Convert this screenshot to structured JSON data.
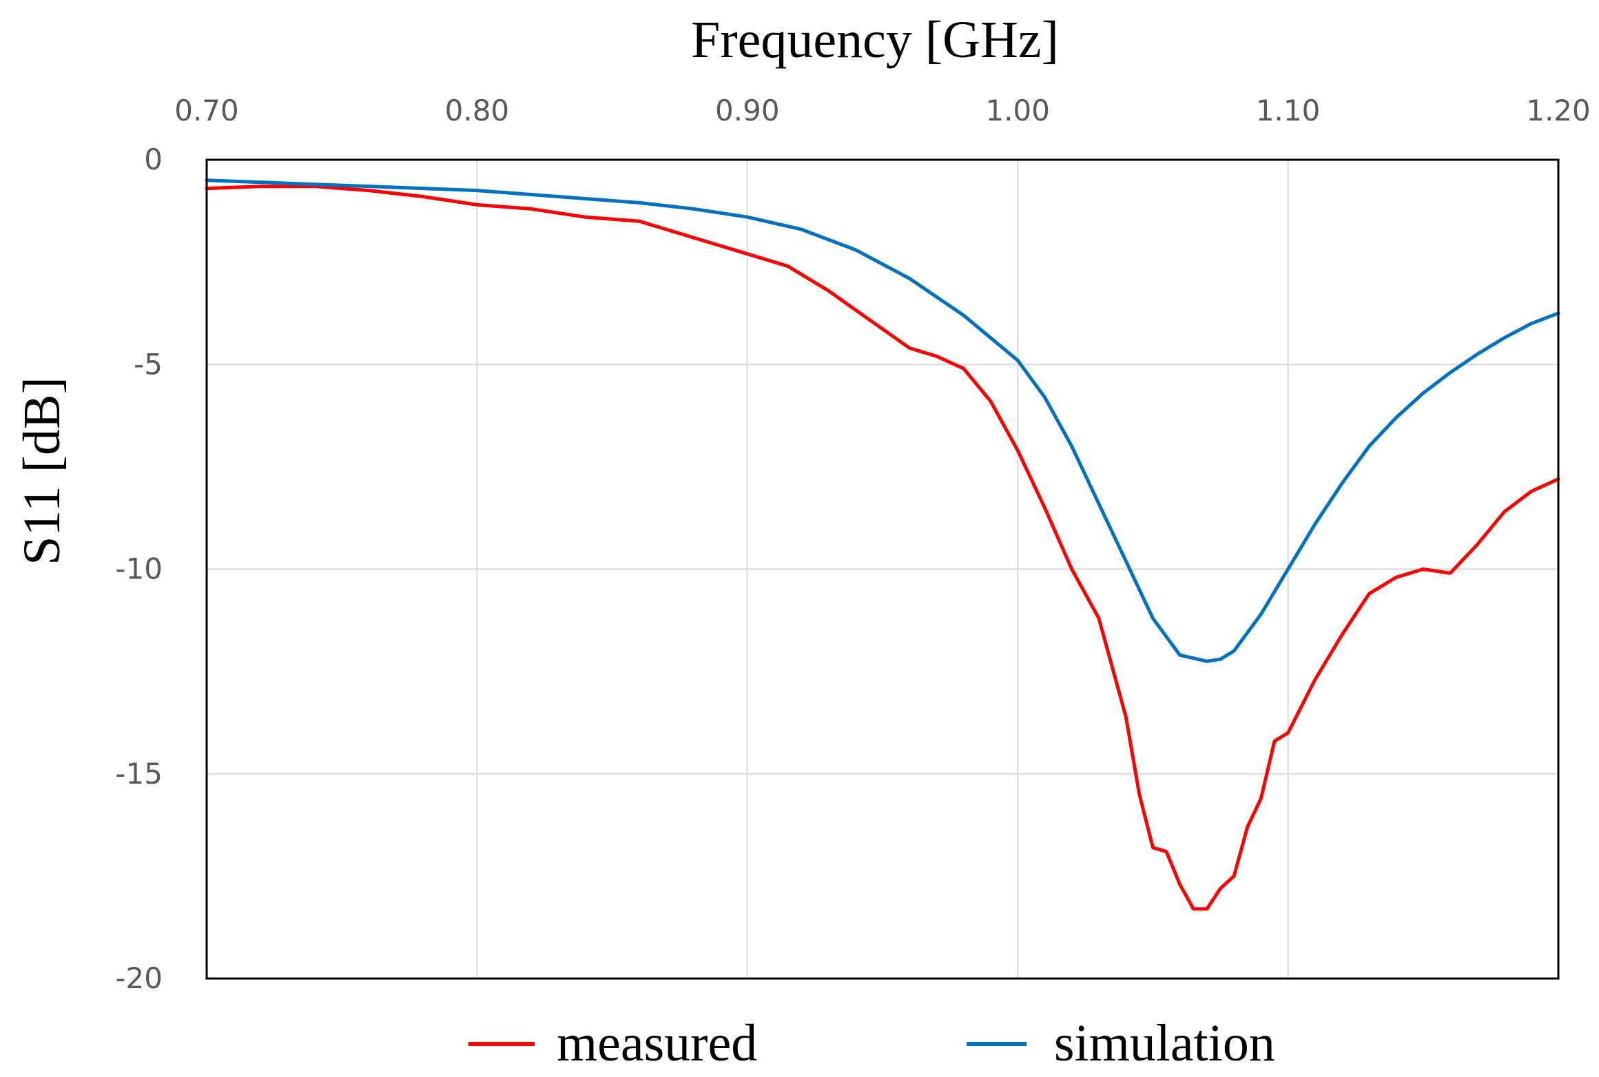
{
  "chart_data": {
    "type": "line",
    "xlabel": "Frequency [GHz]",
    "ylabel": "S11 [dB]",
    "xlim": [
      0.7,
      1.2
    ],
    "ylim": [
      -20,
      0
    ],
    "x_axis_position": "top",
    "x_ticks": [
      0.7,
      0.8,
      0.9,
      1.0,
      1.1,
      1.2
    ],
    "x_tick_labels": [
      "0.70",
      "0.80",
      "0.90",
      "1.00",
      "1.10",
      "1.20"
    ],
    "y_ticks": [
      0,
      -5,
      -10,
      -15,
      -20
    ],
    "y_tick_labels": [
      "0",
      "-5",
      "-10",
      "-15",
      "-20"
    ],
    "grid": true,
    "legend_position": "bottom",
    "series": [
      {
        "name": "measured",
        "color": "#ff0000",
        "x": [
          0.7,
          0.72,
          0.74,
          0.76,
          0.78,
          0.8,
          0.82,
          0.84,
          0.86,
          0.88,
          0.9,
          0.915,
          0.93,
          0.945,
          0.96,
          0.97,
          0.98,
          0.99,
          1.0,
          1.01,
          1.02,
          1.03,
          1.04,
          1.045,
          1.05,
          1.055,
          1.06,
          1.065,
          1.07,
          1.075,
          1.08,
          1.085,
          1.09,
          1.095,
          1.1,
          1.11,
          1.12,
          1.13,
          1.14,
          1.15,
          1.16,
          1.17,
          1.18,
          1.19,
          1.2
        ],
        "y": [
          -0.7,
          -0.65,
          -0.65,
          -0.75,
          -0.9,
          -1.1,
          -1.2,
          -1.4,
          -1.5,
          -1.9,
          -2.3,
          -2.6,
          -3.2,
          -3.9,
          -4.6,
          -4.8,
          -5.1,
          -5.9,
          -7.1,
          -8.5,
          -10.0,
          -11.2,
          -13.6,
          -15.5,
          -16.8,
          -16.9,
          -17.7,
          -18.3,
          -18.3,
          -17.8,
          -17.5,
          -16.3,
          -15.6,
          -14.2,
          -14.0,
          -12.7,
          -11.6,
          -10.6,
          -10.2,
          -10.0,
          -10.1,
          -9.4,
          -8.6,
          -8.1,
          -7.8
        ]
      },
      {
        "name": "simulation",
        "color": "#0070c0",
        "x": [
          0.7,
          0.72,
          0.74,
          0.76,
          0.78,
          0.8,
          0.82,
          0.84,
          0.86,
          0.88,
          0.9,
          0.92,
          0.94,
          0.96,
          0.98,
          1.0,
          1.01,
          1.02,
          1.03,
          1.04,
          1.05,
          1.06,
          1.07,
          1.075,
          1.08,
          1.09,
          1.1,
          1.11,
          1.12,
          1.13,
          1.14,
          1.15,
          1.16,
          1.17,
          1.18,
          1.19,
          1.2
        ],
        "y": [
          -0.5,
          -0.55,
          -0.6,
          -0.65,
          -0.7,
          -0.75,
          -0.85,
          -0.95,
          -1.05,
          -1.2,
          -1.4,
          -1.7,
          -2.2,
          -2.9,
          -3.8,
          -4.9,
          -5.8,
          -7.0,
          -8.4,
          -9.8,
          -11.2,
          -12.1,
          -12.25,
          -12.2,
          -12.0,
          -11.1,
          -10.0,
          -8.9,
          -7.9,
          -7.0,
          -6.3,
          -5.7,
          -5.2,
          -4.75,
          -4.35,
          -4.0,
          -3.75
        ]
      }
    ]
  }
}
